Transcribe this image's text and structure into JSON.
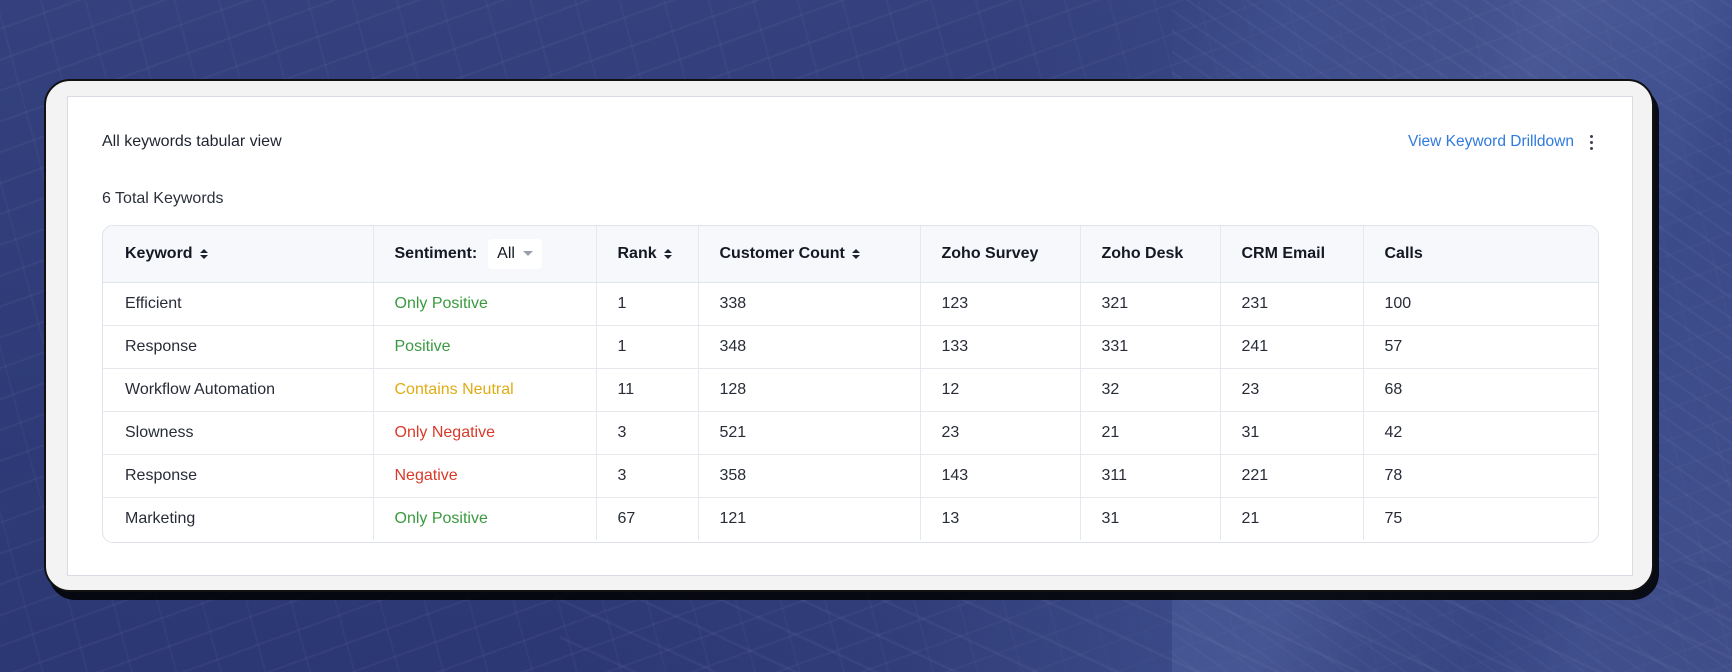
{
  "panel": {
    "title": "All keywords tabular view",
    "drilldown_link": "View Keyword Drilldown",
    "more_icon": "vertical-ellipsis-icon",
    "total_label": "6 Total Keywords"
  },
  "table": {
    "headers": {
      "keyword": "Keyword",
      "sentiment": "Sentiment:",
      "sentiment_filter": "All",
      "rank": "Rank",
      "customer_count": "Customer Count",
      "zoho_survey": "Zoho Survey",
      "zoho_desk": "Zoho Desk",
      "crm_email": "CRM Email",
      "calls": "Calls"
    },
    "rows": [
      {
        "keyword": "Efficient",
        "sentiment": "Only Positive",
        "sentiment_color": "#3a9a3f",
        "rank": "1",
        "customer_count": "338",
        "zoho_survey": "123",
        "zoho_desk": "321",
        "crm_email": "231",
        "calls": "100"
      },
      {
        "keyword": "Response",
        "sentiment": "Positive",
        "sentiment_color": "#3a9a3f",
        "rank": "1",
        "customer_count": "348",
        "zoho_survey": "133",
        "zoho_desk": "331",
        "crm_email": "241",
        "calls": "57"
      },
      {
        "keyword": "Workflow Automation",
        "sentiment": "Contains Neutral",
        "sentiment_color": "#e0ac14",
        "rank": "11",
        "customer_count": "128",
        "zoho_survey": "12",
        "zoho_desk": "32",
        "crm_email": "23",
        "calls": "68"
      },
      {
        "keyword": "Slowness",
        "sentiment": "Only Negative",
        "sentiment_color": "#d83a2a",
        "rank": "3",
        "customer_count": "521",
        "zoho_survey": "23",
        "zoho_desk": "21",
        "crm_email": "31",
        "calls": "42"
      },
      {
        "keyword": "Response",
        "sentiment": "Negative",
        "sentiment_color": "#d83a2a",
        "rank": "3",
        "customer_count": "358",
        "zoho_survey": "143",
        "zoho_desk": "311",
        "crm_email": "221",
        "calls": "78"
      },
      {
        "keyword": "Marketing",
        "sentiment": "Only Positive",
        "sentiment_color": "#3a9a3f",
        "rank": "67",
        "customer_count": "121",
        "zoho_survey": "13",
        "zoho_desk": "31",
        "crm_email": "21",
        "calls": "75"
      }
    ]
  },
  "colors": {
    "link": "#2f7bde",
    "positive": "#3a9a3f",
    "neutral": "#e0ac14",
    "negative": "#d83a2a"
  }
}
